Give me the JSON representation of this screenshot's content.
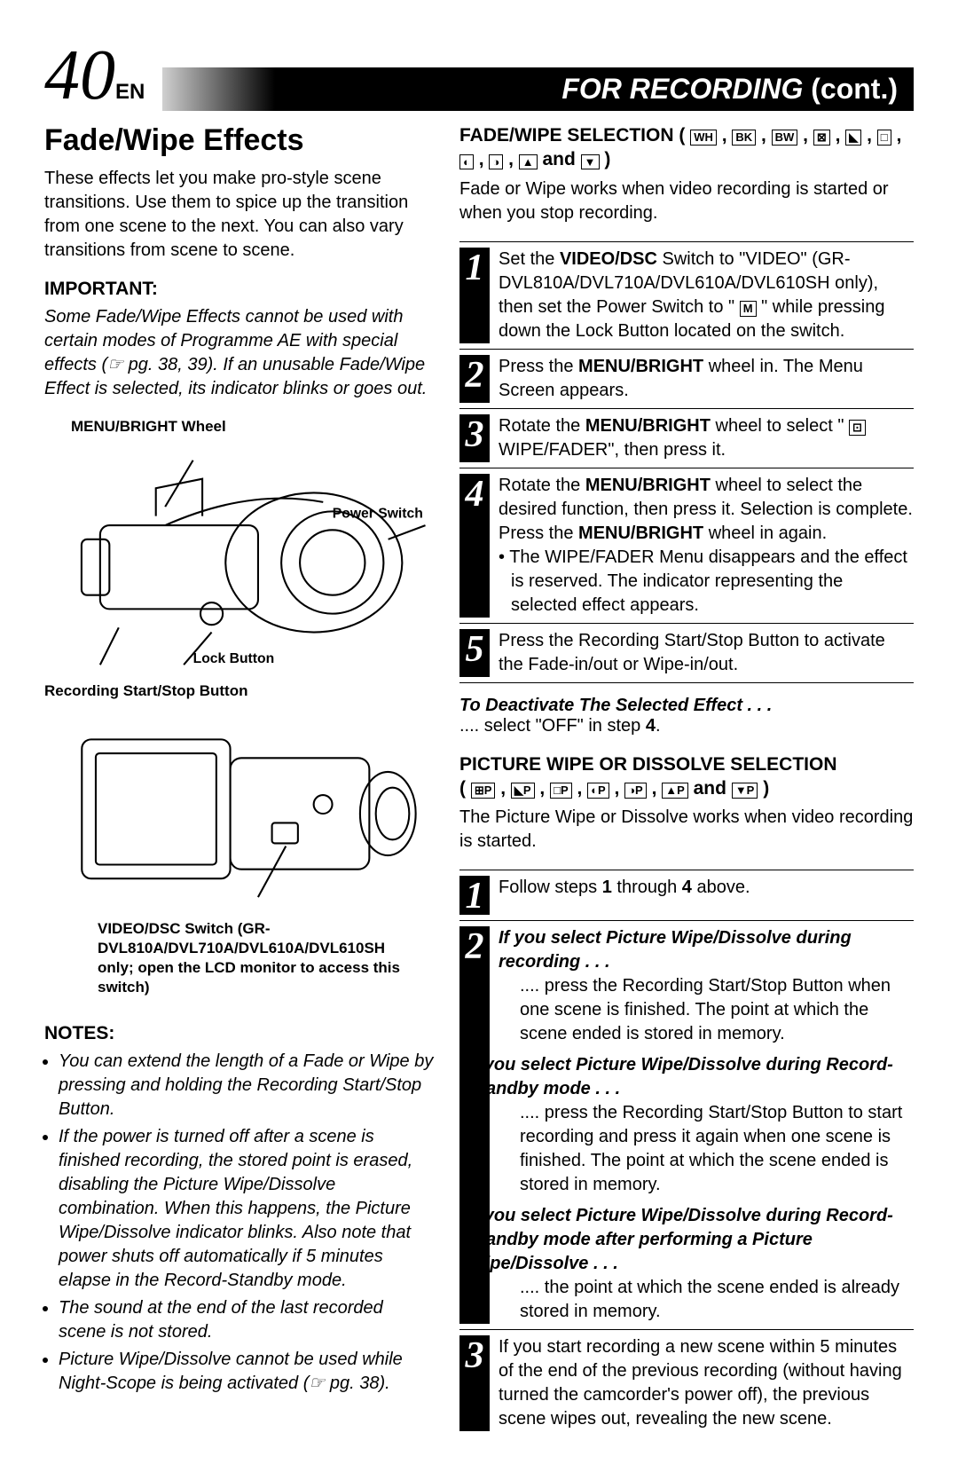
{
  "header": {
    "page_number": "40",
    "page_suffix": "EN",
    "section_title": "FOR RECORDING",
    "section_cont": "(cont.)"
  },
  "left": {
    "title": "Fade/Wipe Effects",
    "intro": "These effects let you make pro-style scene transitions. Use them to spice up the transition from one scene to the next. You can also vary transitions from scene to scene.",
    "important_label": "IMPORTANT:",
    "important_body": "Some Fade/Wipe Effects cannot be used with certain modes of Programme AE with special effects (☞ pg. 38, 39). If an unusable Fade/Wipe Effect is selected, its indicator blinks or goes out.",
    "illus1_labels": {
      "menu_bright": "MENU/BRIGHT Wheel",
      "power_switch": "Power Switch",
      "lock_button": "Lock Button",
      "rec_start_stop": "Recording Start/Stop Button"
    },
    "illus2_caption": "VIDEO/DSC Switch (GR-DVL810A/DVL710A/DVL610A/DVL610SH only; open the LCD monitor to access this switch)",
    "notes_label": "NOTES:",
    "notes": [
      "You can extend the length of a Fade or Wipe by pressing and holding the Recording Start/Stop Button.",
      "If the power is turned off after a scene is finished recording, the stored point is erased, disabling the Picture Wipe/Dissolve combination. When this happens, the Picture Wipe/Dissolve indicator blinks. Also note that power shuts off automatically if 5 minutes elapse in the Record-Standby mode.",
      "The sound at the end of the last recorded scene is not stored.",
      "Picture Wipe/Dissolve cannot be used while Night-Scope is being activated (☞ pg. 38)."
    ]
  },
  "right": {
    "fw_heading_a": "FADE/WIPE SELECTION ( ",
    "fw_heading_icons": [
      "WH",
      "BK",
      "BW",
      "⊠",
      "◣",
      "□",
      "◐",
      "◑",
      "▲"
    ],
    "fw_and": " and ",
    "fw_last_icon": "▼",
    "fw_close": " )",
    "fw_intro": "Fade or Wipe works when video recording is started or when you stop recording.",
    "steps_a": [
      {
        "n": "1",
        "html": "Set the <b>VIDEO/DSC</b> Switch to \"VIDEO\" (GR-DVL810A/DVL710A/DVL610A/DVL610SH only), then set the Power Switch to \" <span class='icon-box'>M</span> \" while pressing down the Lock Button located on the switch."
      },
      {
        "n": "2",
        "html": "Press the <b>MENU/BRIGHT</b> wheel in. The Menu Screen appears."
      },
      {
        "n": "3",
        "html": "Rotate the <b>MENU/BRIGHT</b> wheel to select \" <span class='icon-box'>⊡</span> WIPE/FADER\", then press it."
      },
      {
        "n": "4",
        "html": "Rotate the <b>MENU/BRIGHT</b> wheel to select the desired function, then press it. Selection is complete. Press the <b>MENU/BRIGHT</b> wheel in again.",
        "bullet": "The WIPE/FADER Menu disappears and the effect is reserved. The indicator representing the selected effect appears."
      },
      {
        "n": "5",
        "html": "Press the Recording Start/Stop Button to activate the Fade-in/out or Wipe-in/out."
      }
    ],
    "deactivate_lead": "To Deactivate The Selected Effect . . .",
    "deactivate_body": ".... select \"OFF\" in step 4.",
    "pw_heading_a": "PICTURE WIPE OR DISSOLVE SELECTION",
    "pw_heading_b_prefix": "( ",
    "pw_icons": [
      "⊞P",
      "◣P",
      "□P",
      "◐P",
      "◑P",
      "▲P"
    ],
    "pw_and": " and ",
    "pw_last": "▼P",
    "pw_close": " )",
    "pw_intro": "The Picture Wipe or Dissolve works when video recording is started.",
    "steps_b": [
      {
        "n": "1",
        "html": "Follow steps <b>1</b> through <b>4</b> above."
      },
      {
        "n": "2",
        "blocks": [
          {
            "lead": "If you select Picture Wipe/Dissolve during recording . . .",
            "body": ".... press the Recording Start/Stop Button when one scene is finished. The point at which the scene ended is stored in memory."
          },
          {
            "lead": "If you select Picture Wipe/Dissolve during Record-Standby mode . . .",
            "body": ".... press the Recording Start/Stop Button to start recording and press it again when one scene is finished. The point at which the scene ended is stored in memory."
          },
          {
            "lead": "If you select Picture Wipe/Dissolve during Record-Standby mode after performing a Picture Wipe/Dissolve . . .",
            "body": ".... the point at which the scene ended is already stored in memory."
          }
        ]
      },
      {
        "n": "3",
        "html": "If you start recording a new scene within 5 minutes of the end of the previous recording (without having turned the camcorder's power off), the previous scene wipes out, revealing the new scene."
      }
    ]
  }
}
